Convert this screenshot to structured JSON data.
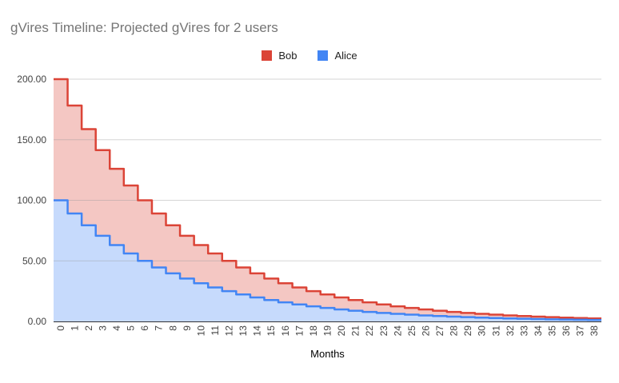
{
  "title": "gVires Timeline: Projected gVires for 2 users",
  "xlabel": "Months",
  "legend": [
    {
      "label": "Bob",
      "color": "#db4437"
    },
    {
      "label": "Alice",
      "color": "#4285f4"
    }
  ],
  "chart_data": {
    "type": "area",
    "stepped": true,
    "title": "gVires Timeline: Projected gVires for 2 users",
    "xlabel": "Months",
    "ylabel": "",
    "ylim": [
      0,
      200
    ],
    "y_ticks": [
      0,
      50,
      100,
      150,
      200
    ],
    "y_tick_labels": [
      "0.00",
      "50.00",
      "100.00",
      "150.00",
      "200.00"
    ],
    "grid": true,
    "legend_position": "top-center",
    "x": [
      0,
      1,
      2,
      3,
      4,
      5,
      6,
      7,
      8,
      9,
      10,
      11,
      12,
      13,
      14,
      15,
      16,
      17,
      18,
      19,
      20,
      21,
      22,
      23,
      24,
      25,
      26,
      27,
      28,
      29,
      30,
      31,
      32,
      33,
      34,
      35,
      36,
      37,
      38
    ],
    "series": [
      {
        "name": "Bob",
        "color": "#db4437",
        "fill": "#f4c7c3",
        "values": [
          200,
          178.18,
          158.74,
          141.42,
          125.99,
          112.25,
          100,
          89.09,
          79.37,
          70.71,
          63.0,
          56.12,
          50,
          44.54,
          39.69,
          35.36,
          31.5,
          28.06,
          25,
          22.27,
          19.84,
          17.68,
          15.75,
          14.03,
          12.5,
          11.14,
          9.92,
          8.84,
          7.87,
          7.02,
          6.25,
          5.57,
          4.96,
          4.42,
          3.94,
          3.51,
          3.13,
          2.78,
          2.48
        ]
      },
      {
        "name": "Alice",
        "color": "#4285f4",
        "fill": "#c6dafc",
        "values": [
          100,
          89.09,
          79.37,
          70.71,
          63.0,
          56.12,
          50,
          44.54,
          39.69,
          35.36,
          31.5,
          28.06,
          25,
          22.27,
          19.84,
          17.68,
          15.75,
          14.03,
          12.5,
          11.14,
          9.92,
          8.84,
          7.87,
          7.02,
          6.25,
          5.57,
          4.96,
          4.42,
          3.94,
          3.51,
          3.13,
          2.78,
          2.48,
          2.21,
          1.97,
          1.75,
          1.56,
          1.39,
          1.24
        ]
      }
    ],
    "axis_color": "#333333",
    "gridline_color": "#999999",
    "tick_label_color": "#424242"
  }
}
